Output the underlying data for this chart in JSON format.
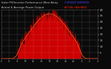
{
  "title": "Solar PV/Inverter Performance West Array",
  "subtitle": "Actual & Average Power Output",
  "legend_entries": [
    "CURRENT INVERTER",
    "ACTUAL+AVERAGE"
  ],
  "bg_color": "#0a0a0a",
  "plot_bg_color": "#0a0a0a",
  "fill_color": "#cc0000",
  "line_color": "#dd0000",
  "avg_line_color": "#ff4400",
  "grid_color": "#ffffff",
  "title_color": "#cccccc",
  "legend_color_blue": "#4444ff",
  "legend_color_red": "#ff2200",
  "ylim": [
    0,
    40
  ],
  "ytick_values": [
    5,
    10,
    15,
    20,
    25,
    30,
    35,
    40
  ],
  "num_points": 288,
  "peak_index": 144,
  "peak_value": 37,
  "noise_scale": 3.0,
  "sigma": 58
}
